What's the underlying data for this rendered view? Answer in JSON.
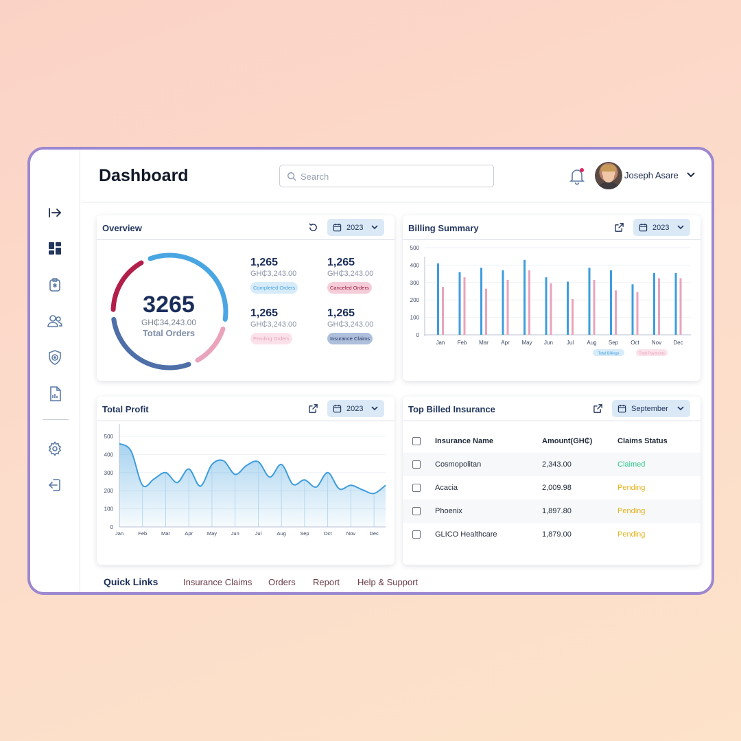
{
  "header": {
    "title": "Dashboard",
    "search_placeholder": "Search",
    "user_name": "Joseph Asare"
  },
  "overview": {
    "title": "Overview",
    "year": "2023",
    "total": "3265",
    "total_amount": "GH₵34,243.00",
    "total_label": "Total Orders",
    "stats": [
      {
        "value": "1,265",
        "amount": "GH₵3,243.00",
        "label": "Completed Orders"
      },
      {
        "value": "1,265",
        "amount": "GH₵3,243.00",
        "label": "Canceled Orders"
      },
      {
        "value": "1,265",
        "amount": "GH₵3,243.00",
        "label": "Pending Orders"
      },
      {
        "value": "1,265",
        "amount": "GH₵3,243.00",
        "label": "Insurance Claims"
      }
    ]
  },
  "billing": {
    "title": "Billing Summary",
    "year": "2023",
    "chart_data": {
      "type": "bar",
      "title": "Billing Summary",
      "categories": [
        "Jan",
        "Feb",
        "Mar",
        "Apr",
        "May",
        "Jun",
        "Jul",
        "Aug",
        "Sep",
        "Oct",
        "Nov",
        "Dec"
      ],
      "series": [
        {
          "name": "Total Billings",
          "color": "#3d9ddd",
          "values": [
            410,
            360,
            385,
            370,
            430,
            330,
            305,
            385,
            370,
            290,
            355,
            355
          ]
        },
        {
          "name": "Total Payments",
          "color": "#e9a3bb",
          "values": [
            275,
            330,
            265,
            315,
            370,
            295,
            205,
            315,
            255,
            245,
            325,
            325
          ]
        }
      ],
      "yticks": [
        "0",
        "100",
        "200",
        "300",
        "400",
        "500"
      ],
      "ylim": [
        0,
        500
      ],
      "legend": "bottom-center"
    }
  },
  "profit": {
    "title": "Total Profit",
    "year": "2023",
    "chart_data": {
      "type": "area",
      "title": "Total Profit",
      "categories": [
        "Jan",
        "Feb",
        "Mar",
        "Apr",
        "May",
        "Jun",
        "Jul",
        "Aug",
        "Sep",
        "Oct",
        "Nov",
        "Dec"
      ],
      "x": [
        0,
        0.5,
        1,
        1.5,
        2,
        2.5,
        3,
        3.5,
        4,
        4.5,
        5,
        5.5,
        6,
        6.5,
        7,
        7.5,
        8,
        8.5,
        9,
        9.5,
        10,
        10.5,
        11,
        11.5
      ],
      "values": [
        460,
        420,
        230,
        265,
        300,
        245,
        320,
        225,
        345,
        365,
        290,
        340,
        360,
        275,
        345,
        235,
        260,
        220,
        300,
        210,
        230,
        205,
        185,
        230
      ],
      "yticks": [
        "0",
        "100",
        "200",
        "300",
        "400",
        "500"
      ],
      "ylim": [
        0,
        500
      ],
      "color": "#3d9ddd"
    }
  },
  "insurance": {
    "title": "Top Billed Insurance",
    "month": "September",
    "columns": [
      "Insurance Name",
      "Amount(GH₵)",
      "Claims Status"
    ],
    "rows": [
      {
        "name": "Cosmopolitan",
        "amount": "2,343.00",
        "status": "Claimed"
      },
      {
        "name": "Acacia",
        "amount": "2,009.98",
        "status": "Pending"
      },
      {
        "name": "Phoenix",
        "amount": "1,897.80",
        "status": "Pending"
      },
      {
        "name": "GLICO Healthcare",
        "amount": "1,879.00",
        "status": "Pending"
      }
    ]
  },
  "quick_links": {
    "title": "Quick Links",
    "links": [
      "Insurance Claims",
      "Orders",
      "Report",
      "Help & Support"
    ]
  },
  "colors": {
    "blue": "#3d9ddd",
    "pink": "#e9a3bb",
    "navy": "#1a2d5a",
    "claimed": "#2ecc8a",
    "pending": "#e3b21c"
  }
}
